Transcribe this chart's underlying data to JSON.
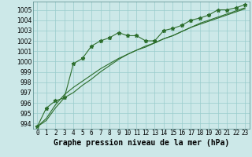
{
  "title": "Graphe pression niveau de la mer (hPa)",
  "x_labels": [
    "0",
    "1",
    "2",
    "3",
    "4",
    "5",
    "6",
    "7",
    "8",
    "9",
    "10",
    "11",
    "12",
    "13",
    "14",
    "15",
    "16",
    "17",
    "18",
    "19",
    "20",
    "21",
    "22",
    "23"
  ],
  "ylim": [
    993.5,
    1005.8
  ],
  "xlim": [
    -0.5,
    23.5
  ],
  "yticks": [
    994,
    995,
    996,
    997,
    998,
    999,
    1000,
    1001,
    1002,
    1003,
    1004,
    1005
  ],
  "line_jagged": [
    993.7,
    995.5,
    996.2,
    996.5,
    999.8,
    1000.3,
    1001.5,
    1002.0,
    1002.3,
    1002.8,
    1002.5,
    1002.5,
    1002.0,
    1002.0,
    1003.0,
    1003.2,
    1003.5,
    1004.0,
    1004.2,
    1004.5,
    1005.0,
    1005.0,
    1005.2,
    1005.5
  ],
  "line_smooth1": [
    993.7,
    994.3,
    995.5,
    996.5,
    997.0,
    997.7,
    998.3,
    999.0,
    999.6,
    1000.2,
    1000.7,
    1001.1,
    1001.5,
    1001.8,
    1002.2,
    1002.5,
    1002.9,
    1003.3,
    1003.6,
    1003.9,
    1004.2,
    1004.5,
    1004.8,
    1005.1
  ],
  "line_smooth2": [
    993.7,
    994.5,
    995.8,
    996.8,
    997.5,
    998.1,
    998.7,
    999.3,
    999.8,
    1000.3,
    1000.7,
    1001.1,
    1001.4,
    1001.8,
    1002.2,
    1002.5,
    1002.9,
    1003.3,
    1003.7,
    1004.0,
    1004.3,
    1004.6,
    1004.9,
    1005.2
  ],
  "bg_color": "#cce8e8",
  "grid_color": "#99cccc",
  "line_color": "#2d6e2d",
  "marker": "*",
  "marker_size": 3.5,
  "title_fontsize": 7.0,
  "tick_fontsize": 5.5
}
